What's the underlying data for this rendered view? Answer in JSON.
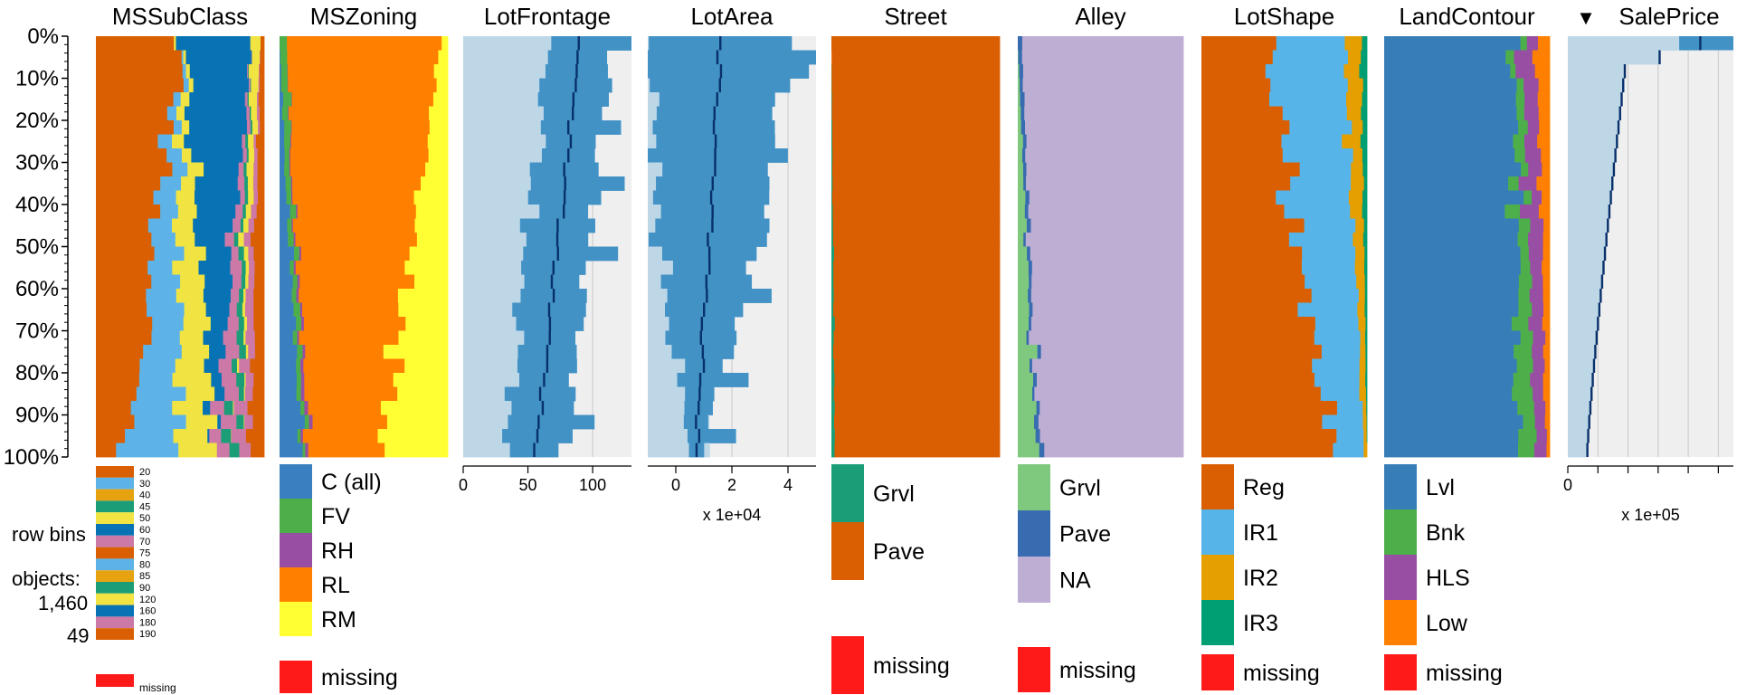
{
  "y_axis": {
    "tick_labels": [
      "0%",
      "10%",
      "20%",
      "30%",
      "40%",
      "50%",
      "60%",
      "70%",
      "80%",
      "90%",
      "100%"
    ]
  },
  "stats": {
    "row_bins_label": "row bins",
    "objects_label": "objects:",
    "objects_value": "1,460",
    "bin_size": "49"
  },
  "colors": {
    "missing": "#FF1A1A",
    "numeric_background": "#EFEFEF",
    "numeric_range": "#BDD7E7",
    "numeric_iqr": "#4292C6",
    "numeric_mean": "#08306B"
  },
  "chart_data": {
    "type": "tableplot",
    "bins": 30,
    "sort_column": "SalePrice",
    "sort_order": "descending",
    "columns": [
      {
        "name": "MSSubClass",
        "kind": "categorical",
        "categories": [
          "20",
          "30",
          "40",
          "45",
          "50",
          "60",
          "70",
          "75",
          "80",
          "85",
          "90",
          "120",
          "160",
          "180",
          "190"
        ],
        "colors": [
          "#D95F02",
          "#5DB3E8",
          "#E7A30F",
          "#1B9E77",
          "#F1E442",
          "#0873B4",
          "#CC79A7",
          "#D95F02",
          "#5DB3E8",
          "#E7A30F",
          "#1B9E77",
          "#F1E442",
          "#0873B4",
          "#CC79A7",
          "#D95F02"
        ],
        "legend_size": "small",
        "missing_label": "missing",
        "first_bin": [
          0.54,
          0.0,
          0.0,
          0.0,
          0.01,
          0.38,
          0.0,
          0.0,
          0.0,
          0.0,
          0.0,
          0.05,
          0.0,
          0.0,
          0.02
        ],
        "last_bin": [
          0.16,
          0.3,
          0.0,
          0.0,
          0.24,
          0.0,
          0.09,
          0.0,
          0.0,
          0.0,
          0.05,
          0.0,
          0.0,
          0.07,
          0.09
        ]
      },
      {
        "name": "MSZoning",
        "kind": "categorical",
        "categories": [
          "C (all)",
          "FV",
          "RH",
          "RL",
          "RM"
        ],
        "colors": [
          "#3A7FBF",
          "#4DAF4A",
          "#984EA3",
          "#FF7F00",
          "#FFFF33"
        ],
        "legend_size": "large",
        "missing_label": "missing",
        "first_bin": [
          0.0,
          0.04,
          0.0,
          0.92,
          0.04
        ],
        "last_bin": [
          0.12,
          0.02,
          0.02,
          0.44,
          0.4
        ]
      },
      {
        "name": "LotFrontage",
        "kind": "numeric",
        "xlim": [
          0,
          130
        ],
        "ticks": [
          0,
          50,
          100
        ],
        "tick_labels": [
          "0",
          "50",
          "100"
        ],
        "scale_label": "",
        "mean_first": 90,
        "mean_last": 56,
        "iqr_first": [
          70,
          115
        ],
        "iqr_last": [
          35,
          80
        ]
      },
      {
        "name": "LotArea",
        "kind": "numeric",
        "xlim": [
          -1,
          5
        ],
        "ticks": [
          0,
          2,
          4
        ],
        "tick_labels": [
          "0",
          "2",
          "4"
        ],
        "scale_label": "x 1e+04",
        "mean_first": 1.6,
        "mean_last": 0.75,
        "iqr_first": [
          -0.9,
          5
        ],
        "iqr_last": [
          0.5,
          1.0
        ]
      },
      {
        "name": "Street",
        "kind": "categorical",
        "categories": [
          "Grvl",
          "Pave"
        ],
        "colors": [
          "#1B9E77",
          "#D95F02"
        ],
        "legend_size": "large",
        "missing_label": "missing",
        "first_bin": [
          0.0,
          1.0
        ],
        "last_bin": [
          0.02,
          0.98
        ]
      },
      {
        "name": "Alley",
        "kind": "categorical",
        "categories": [
          "Grvl",
          "Pave",
          "NA"
        ],
        "colors": [
          "#7FC97F",
          "#386CB0",
          "#BEAED4"
        ],
        "legend_size": "large",
        "missing_label": "missing",
        "first_bin": [
          0.0,
          0.02,
          0.98
        ],
        "last_bin": [
          0.1,
          0.02,
          0.88
        ]
      },
      {
        "name": "LotShape",
        "kind": "categorical",
        "categories": [
          "Reg",
          "IR1",
          "IR2",
          "IR3"
        ],
        "colors": [
          "#D95F02",
          "#56B4E9",
          "#E69F00",
          "#009E73"
        ],
        "legend_size": "large",
        "missing_label": "missing",
        "first_bin": [
          0.38,
          0.48,
          0.1,
          0.04
        ],
        "last_bin": [
          0.8,
          0.18,
          0.02,
          0.0
        ]
      },
      {
        "name": "LandContour",
        "kind": "categorical",
        "categories": [
          "Lvl",
          "Bnk",
          "HLS",
          "Low"
        ],
        "colors": [
          "#377EB8",
          "#4DAF4A",
          "#984EA3",
          "#FF7F00"
        ],
        "legend_size": "large",
        "missing_label": "missing",
        "first_bin": [
          0.78,
          0.04,
          0.1,
          0.08
        ],
        "last_bin": [
          0.82,
          0.1,
          0.06,
          0.02
        ]
      },
      {
        "name": "SalePrice",
        "kind": "numeric",
        "sorted": true,
        "sort_marker": "▼",
        "xlim": [
          0,
          5.5
        ],
        "ticks": [
          0
        ],
        "tick_labels": [
          "0"
        ],
        "scale_label": "x 1e+05",
        "mean_first": 4.4,
        "mean_last": 0.65
      }
    ]
  }
}
